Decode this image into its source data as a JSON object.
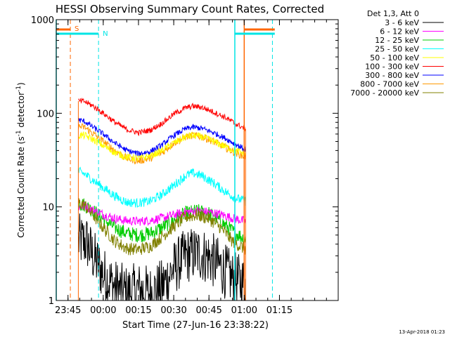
{
  "chart_data": {
    "type": "line",
    "title": "HESSI Observing Summary Count Rates, Corrected",
    "xlabel": "Start Time (27-Jun-16 23:38:22)",
    "ylabel_main": "Corrected Count Rate (s",
    "ylabel_sup1": "-1",
    "ylabel_mid": " detector",
    "ylabel_sup2": "-1",
    "ylabel_end": ")",
    "yscale": "log",
    "ylim": [
      1,
      1000
    ],
    "xlim": [
      -20,
      100
    ],
    "x_unit": "minutes after 00:00 (27/28-Jun-16)",
    "x_ticks": [
      {
        "x": -15,
        "label": "23:45"
      },
      {
        "x": 0,
        "label": "00:00"
      },
      {
        "x": 15,
        "label": "00:15"
      },
      {
        "x": 30,
        "label": "00:30"
      },
      {
        "x": 45,
        "label": "00:45"
      },
      {
        "x": 60,
        "label": "01:00"
      },
      {
        "x": 75,
        "label": "01:15"
      }
    ],
    "y_ticks": [
      {
        "y": 1,
        "label": "1"
      },
      {
        "y": 10,
        "label": "10"
      },
      {
        "y": 100,
        "label": "100"
      },
      {
        "y": 1000,
        "label": "1000"
      }
    ],
    "legend_header": "Det 1,3, Att 0",
    "legend_placement": "right",
    "data_start_x": -10.6,
    "data_end_x": 60.6,
    "series": [
      {
        "name": "3 - 6 keV",
        "color": "#000000",
        "noise": 0.3,
        "knots": [
          [
            -10.6,
            4.3
          ],
          [
            -7,
            4.2
          ],
          [
            -5,
            3.2
          ],
          [
            -3,
            2.6
          ],
          [
            0,
            1.9
          ],
          [
            5,
            1.4
          ],
          [
            10,
            1.2
          ],
          [
            15,
            1.3
          ],
          [
            20,
            1.2
          ],
          [
            25,
            1.4
          ],
          [
            30,
            2.2
          ],
          [
            35,
            3.0
          ],
          [
            40,
            3.2
          ],
          [
            45,
            2.9
          ],
          [
            50,
            2.3
          ],
          [
            55,
            1.7
          ],
          [
            60.6,
            1.5
          ]
        ]
      },
      {
        "name": "6 - 12 keV",
        "color": "#ff00ff",
        "noise": 0.05,
        "knots": [
          [
            -10.6,
            10
          ],
          [
            -8,
            10.2
          ],
          [
            -4,
            9.2
          ],
          [
            0,
            8.3
          ],
          [
            5,
            7.5
          ],
          [
            10,
            7.1
          ],
          [
            15,
            7.0
          ],
          [
            20,
            7.2
          ],
          [
            25,
            7.6
          ],
          [
            30,
            8.2
          ],
          [
            35,
            8.8
          ],
          [
            40,
            9.0
          ],
          [
            45,
            8.8
          ],
          [
            50,
            8.3
          ],
          [
            55,
            7.6
          ],
          [
            60.6,
            7.0
          ]
        ]
      },
      {
        "name": "12 - 25 keV",
        "color": "#00cc00",
        "noise": 0.08,
        "knots": [
          [
            -10.6,
            11
          ],
          [
            -8,
            10.5
          ],
          [
            -4,
            9.0
          ],
          [
            0,
            7.4
          ],
          [
            5,
            6.0
          ],
          [
            10,
            5.2
          ],
          [
            15,
            5.0
          ],
          [
            20,
            5.2
          ],
          [
            25,
            6.0
          ],
          [
            30,
            7.2
          ],
          [
            35,
            8.5
          ],
          [
            40,
            9.0
          ],
          [
            45,
            8.5
          ],
          [
            50,
            7.0
          ],
          [
            55,
            5.5
          ],
          [
            60.6,
            4.5
          ]
        ]
      },
      {
        "name": "25 - 50 keV",
        "color": "#00ffff",
        "noise": 0.05,
        "knots": [
          [
            -10.6,
            24
          ],
          [
            -8,
            22.5
          ],
          [
            -4,
            19
          ],
          [
            0,
            16
          ],
          [
            5,
            13
          ],
          [
            10,
            11.2
          ],
          [
            15,
            11
          ],
          [
            20,
            11.5
          ],
          [
            25,
            13.5
          ],
          [
            30,
            17
          ],
          [
            35,
            21.5
          ],
          [
            38,
            23
          ],
          [
            42,
            21.5
          ],
          [
            47,
            18
          ],
          [
            52,
            14.5
          ],
          [
            56,
            12.5
          ],
          [
            60.6,
            11.5
          ]
        ]
      },
      {
        "name": "50 - 100 keV",
        "color": "#ffff00",
        "noise": 0.04,
        "knots": [
          [
            -10.6,
            58
          ],
          [
            -8,
            58
          ],
          [
            -4,
            52
          ],
          [
            0,
            45
          ],
          [
            5,
            38
          ],
          [
            10,
            34
          ],
          [
            15,
            33
          ],
          [
            20,
            35
          ],
          [
            25,
            40
          ],
          [
            30,
            48
          ],
          [
            35,
            56
          ],
          [
            38,
            58
          ],
          [
            42,
            56
          ],
          [
            47,
            50
          ],
          [
            52,
            44
          ],
          [
            56,
            40
          ],
          [
            60.6,
            37
          ]
        ]
      },
      {
        "name": "100 - 300 keV",
        "color": "#ff0000",
        "noise": 0.03,
        "knots": [
          [
            -10.6,
            135
          ],
          [
            -8,
            134
          ],
          [
            -4,
            118
          ],
          [
            0,
            100
          ],
          [
            5,
            80
          ],
          [
            10,
            67
          ],
          [
            15,
            62
          ],
          [
            20,
            66
          ],
          [
            25,
            78
          ],
          [
            30,
            98
          ],
          [
            35,
            114
          ],
          [
            38,
            119
          ],
          [
            42,
            116
          ],
          [
            47,
            103
          ],
          [
            52,
            90
          ],
          [
            56,
            78
          ],
          [
            60.6,
            68
          ]
        ]
      },
      {
        "name": "300 - 800 keV",
        "color": "#0000ff",
        "noise": 0.03,
        "knots": [
          [
            -10.6,
            85
          ],
          [
            -8,
            82
          ],
          [
            -4,
            70
          ],
          [
            0,
            60
          ],
          [
            5,
            48
          ],
          [
            10,
            40
          ],
          [
            15,
            37
          ],
          [
            20,
            39
          ],
          [
            25,
            46
          ],
          [
            30,
            58
          ],
          [
            35,
            68
          ],
          [
            38,
            71
          ],
          [
            42,
            69
          ],
          [
            47,
            62
          ],
          [
            52,
            54
          ],
          [
            56,
            47
          ],
          [
            60.6,
            41
          ]
        ]
      },
      {
        "name": "800 - 7000 keV",
        "color": "#ff9900",
        "noise": 0.04,
        "knots": [
          [
            -10.6,
            72
          ],
          [
            -8,
            71
          ],
          [
            -4,
            60
          ],
          [
            0,
            50
          ],
          [
            5,
            40
          ],
          [
            10,
            33
          ],
          [
            15,
            31
          ],
          [
            20,
            33
          ],
          [
            25,
            38
          ],
          [
            30,
            48
          ],
          [
            35,
            56
          ],
          [
            38,
            58
          ],
          [
            42,
            56
          ],
          [
            47,
            50
          ],
          [
            52,
            43
          ],
          [
            56,
            38
          ],
          [
            60.6,
            34
          ]
        ]
      },
      {
        "name": "7000 - 20000 keV",
        "color": "#808000",
        "noise": 0.07,
        "knots": [
          [
            -10.6,
            11
          ],
          [
            -8,
            10.5
          ],
          [
            -4,
            8.0
          ],
          [
            0,
            6.0
          ],
          [
            5,
            4.3
          ],
          [
            10,
            3.6
          ],
          [
            15,
            3.5
          ],
          [
            20,
            3.8
          ],
          [
            25,
            4.8
          ],
          [
            30,
            6.2
          ],
          [
            35,
            7.8
          ],
          [
            40,
            8.2
          ],
          [
            45,
            7.5
          ],
          [
            50,
            6.0
          ],
          [
            55,
            4.3
          ],
          [
            60.6,
            3.5
          ]
        ]
      }
    ],
    "annotations": [
      {
        "text": "S",
        "color": "#ff6600"
      },
      {
        "text": "N",
        "color": "#00e5e5"
      }
    ],
    "timestamp": "13-Apr-2018 01:23"
  }
}
